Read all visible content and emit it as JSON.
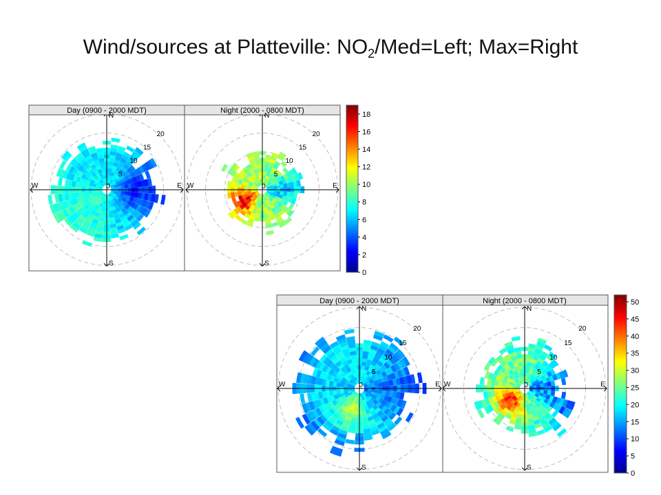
{
  "slide": {
    "title_main": "Wind/sources at Platteville: NO",
    "title_sub": "2",
    "title_rest": "/Med=Left; Max=Right"
  },
  "chart_data": [
    {
      "type": "heatmap",
      "chart_kind": "polar pollution rose",
      "statistic": "median",
      "panels": [
        {
          "title": "Day (0900 - 2000 MDT)"
        },
        {
          "title": "Night (2000 - 0800 MDT)"
        }
      ],
      "directions": [
        "N",
        "E",
        "S",
        "W"
      ],
      "radial_ticks": [
        "0",
        "5",
        "10",
        "15",
        "20"
      ],
      "radial_range": [
        0,
        20
      ],
      "colorbar_ticks": [
        "0",
        "2",
        "4",
        "6",
        "8",
        "10",
        "12",
        "14",
        "16",
        "18"
      ],
      "colorbar_range": [
        0,
        19
      ],
      "colors": {
        "low": "#00008f",
        "mid": "#7fff7f",
        "high": "#7f0000"
      }
    },
    {
      "type": "heatmap",
      "chart_kind": "polar pollution rose",
      "statistic": "max",
      "panels": [
        {
          "title": "Day (0900 - 2000 MDT)"
        },
        {
          "title": "Night (2000 - 0800 MDT)"
        }
      ],
      "directions": [
        "N",
        "E",
        "S",
        "W"
      ],
      "radial_ticks": [
        "0",
        "5",
        "10",
        "15",
        "20"
      ],
      "radial_range": [
        0,
        20
      ],
      "colorbar_ticks": [
        "0",
        "5",
        "10",
        "15",
        "20",
        "25",
        "30",
        "35",
        "40",
        "45",
        "50"
      ],
      "colorbar_range": [
        0,
        52
      ],
      "colors": {
        "low": "#00008f",
        "mid": "#7fff7f",
        "high": "#7f0000"
      }
    }
  ]
}
